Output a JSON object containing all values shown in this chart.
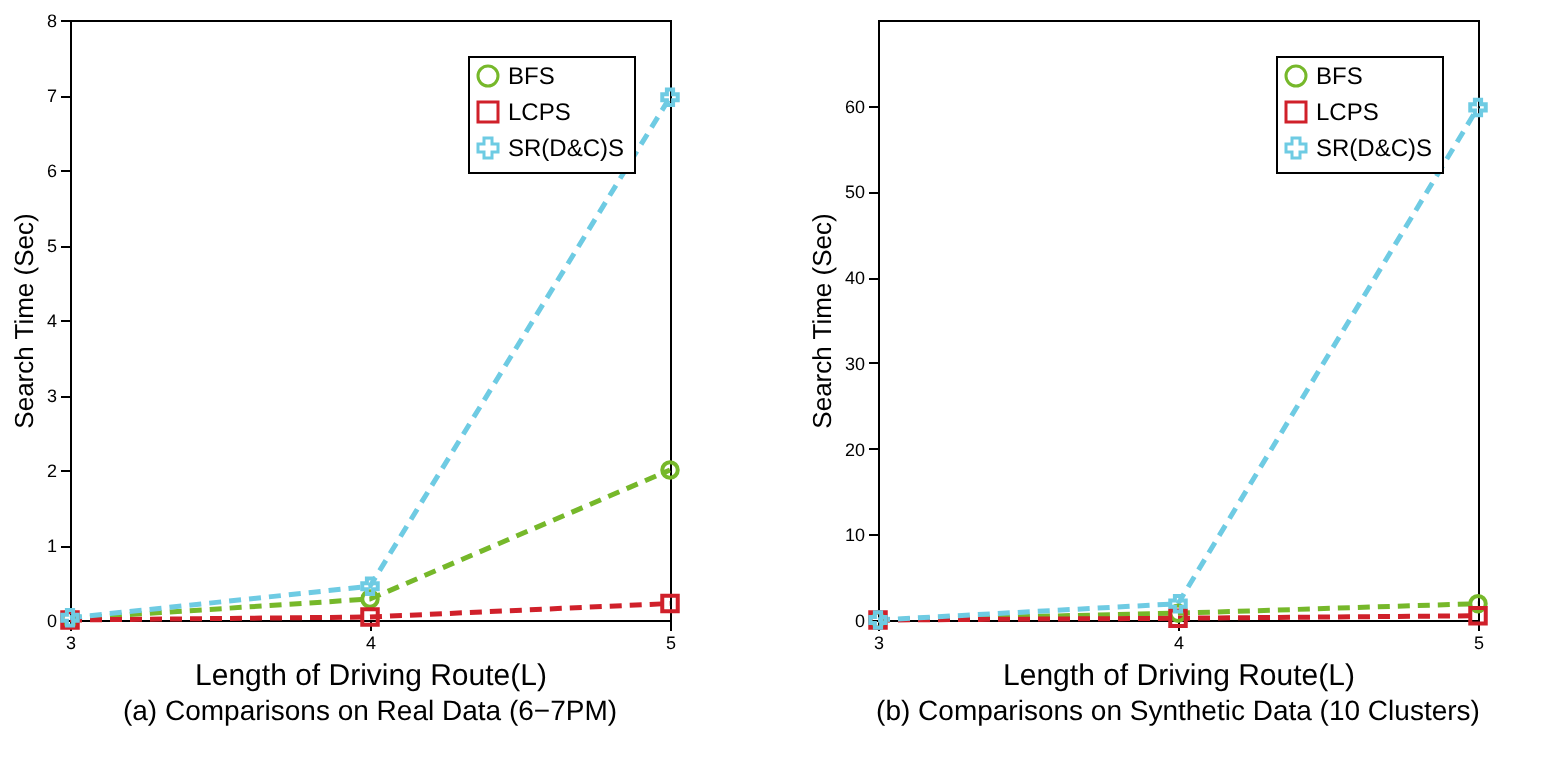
{
  "chart_data": [
    {
      "type": "line",
      "title": "(a)  Comparisons on Real Data (6−7PM)",
      "xlabel": "Length of Driving Route(L)",
      "ylabel": "Search Time (Sec)",
      "x": [
        3,
        4,
        5
      ],
      "xlim": [
        3,
        5
      ],
      "xticks": [
        3,
        4,
        5
      ],
      "ylim": [
        0,
        8
      ],
      "yticks": [
        0,
        1,
        2,
        3,
        4,
        5,
        6,
        7,
        8
      ],
      "legend": "top right",
      "line_style": "dashed",
      "grid": false,
      "series": [
        {
          "name": "BFS",
          "color": "#76b82a",
          "marker": "circle",
          "values": [
            0.02,
            0.28,
            2.0
          ]
        },
        {
          "name": "LCPS",
          "color": "#d0202a",
          "marker": "square",
          "values": [
            0.0,
            0.04,
            0.22
          ]
        },
        {
          "name": "SR(D&C)S",
          "color": "#6ecbe3",
          "marker": "cross",
          "values": [
            0.03,
            0.45,
            6.97
          ]
        }
      ]
    },
    {
      "type": "line",
      "title": "(b)  Comparisons on Synthetic Data (10 Clusters)",
      "xlabel": "Length of Driving Route(L)",
      "ylabel": "Search Time (Sec)",
      "x": [
        3,
        4,
        5
      ],
      "xlim": [
        3,
        5
      ],
      "xticks": [
        3,
        4,
        5
      ],
      "ylim": [
        0,
        70
      ],
      "yticks": [
        0,
        10,
        20,
        30,
        40,
        50,
        60
      ],
      "legend": "top right",
      "line_style": "dashed",
      "grid": false,
      "series": [
        {
          "name": "BFS",
          "color": "#76b82a",
          "marker": "circle",
          "values": [
            0.0,
            0.8,
            1.9
          ]
        },
        {
          "name": "LCPS",
          "color": "#d0202a",
          "marker": "square",
          "values": [
            0.0,
            0.2,
            0.5
          ]
        },
        {
          "name": "SR(D&C)S",
          "color": "#6ecbe3",
          "marker": "cross",
          "values": [
            0.0,
            1.9,
            59.8
          ]
        }
      ]
    }
  ]
}
